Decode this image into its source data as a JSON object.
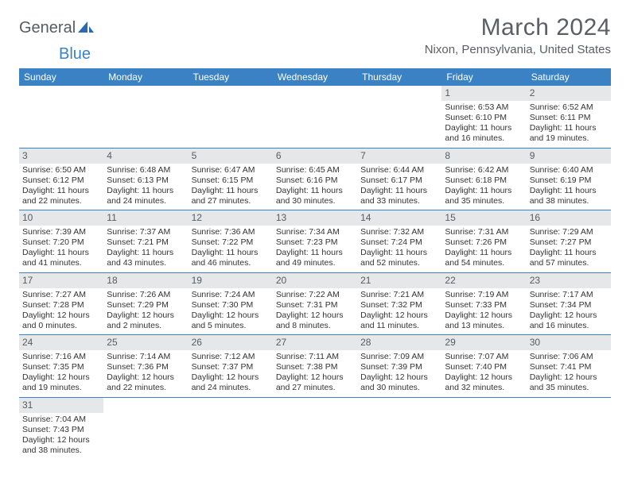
{
  "logo": {
    "part1": "General",
    "part2": "Blue"
  },
  "title": {
    "month": "March 2024",
    "location": "Nixon, Pennsylvania, United States"
  },
  "colors": {
    "header_bg": "#3b82c4",
    "daynum_bg": "#e5e7e9",
    "text": "#333333",
    "title_text": "#5a5f66"
  },
  "weekdays": [
    "Sunday",
    "Monday",
    "Tuesday",
    "Wednesday",
    "Thursday",
    "Friday",
    "Saturday"
  ],
  "days": {
    "1": {
      "sunrise": "6:53 AM",
      "sunset": "6:10 PM",
      "day_h": 11,
      "day_m": 16
    },
    "2": {
      "sunrise": "6:52 AM",
      "sunset": "6:11 PM",
      "day_h": 11,
      "day_m": 19
    },
    "3": {
      "sunrise": "6:50 AM",
      "sunset": "6:12 PM",
      "day_h": 11,
      "day_m": 22
    },
    "4": {
      "sunrise": "6:48 AM",
      "sunset": "6:13 PM",
      "day_h": 11,
      "day_m": 24
    },
    "5": {
      "sunrise": "6:47 AM",
      "sunset": "6:15 PM",
      "day_h": 11,
      "day_m": 27
    },
    "6": {
      "sunrise": "6:45 AM",
      "sunset": "6:16 PM",
      "day_h": 11,
      "day_m": 30
    },
    "7": {
      "sunrise": "6:44 AM",
      "sunset": "6:17 PM",
      "day_h": 11,
      "day_m": 33
    },
    "8": {
      "sunrise": "6:42 AM",
      "sunset": "6:18 PM",
      "day_h": 11,
      "day_m": 35
    },
    "9": {
      "sunrise": "6:40 AM",
      "sunset": "6:19 PM",
      "day_h": 11,
      "day_m": 38
    },
    "10": {
      "sunrise": "7:39 AM",
      "sunset": "7:20 PM",
      "day_h": 11,
      "day_m": 41
    },
    "11": {
      "sunrise": "7:37 AM",
      "sunset": "7:21 PM",
      "day_h": 11,
      "day_m": 43
    },
    "12": {
      "sunrise": "7:36 AM",
      "sunset": "7:22 PM",
      "day_h": 11,
      "day_m": 46
    },
    "13": {
      "sunrise": "7:34 AM",
      "sunset": "7:23 PM",
      "day_h": 11,
      "day_m": 49
    },
    "14": {
      "sunrise": "7:32 AM",
      "sunset": "7:24 PM",
      "day_h": 11,
      "day_m": 52
    },
    "15": {
      "sunrise": "7:31 AM",
      "sunset": "7:26 PM",
      "day_h": 11,
      "day_m": 54
    },
    "16": {
      "sunrise": "7:29 AM",
      "sunset": "7:27 PM",
      "day_h": 11,
      "day_m": 57
    },
    "17": {
      "sunrise": "7:27 AM",
      "sunset": "7:28 PM",
      "day_h": 12,
      "day_m": 0
    },
    "18": {
      "sunrise": "7:26 AM",
      "sunset": "7:29 PM",
      "day_h": 12,
      "day_m": 2
    },
    "19": {
      "sunrise": "7:24 AM",
      "sunset": "7:30 PM",
      "day_h": 12,
      "day_m": 5
    },
    "20": {
      "sunrise": "7:22 AM",
      "sunset": "7:31 PM",
      "day_h": 12,
      "day_m": 8
    },
    "21": {
      "sunrise": "7:21 AM",
      "sunset": "7:32 PM",
      "day_h": 12,
      "day_m": 11
    },
    "22": {
      "sunrise": "7:19 AM",
      "sunset": "7:33 PM",
      "day_h": 12,
      "day_m": 13
    },
    "23": {
      "sunrise": "7:17 AM",
      "sunset": "7:34 PM",
      "day_h": 12,
      "day_m": 16
    },
    "24": {
      "sunrise": "7:16 AM",
      "sunset": "7:35 PM",
      "day_h": 12,
      "day_m": 19
    },
    "25": {
      "sunrise": "7:14 AM",
      "sunset": "7:36 PM",
      "day_h": 12,
      "day_m": 22
    },
    "26": {
      "sunrise": "7:12 AM",
      "sunset": "7:37 PM",
      "day_h": 12,
      "day_m": 24
    },
    "27": {
      "sunrise": "7:11 AM",
      "sunset": "7:38 PM",
      "day_h": 12,
      "day_m": 27
    },
    "28": {
      "sunrise": "7:09 AM",
      "sunset": "7:39 PM",
      "day_h": 12,
      "day_m": 30
    },
    "29": {
      "sunrise": "7:07 AM",
      "sunset": "7:40 PM",
      "day_h": 12,
      "day_m": 32
    },
    "30": {
      "sunrise": "7:06 AM",
      "sunset": "7:41 PM",
      "day_h": 12,
      "day_m": 35
    },
    "31": {
      "sunrise": "7:04 AM",
      "sunset": "7:43 PM",
      "day_h": 12,
      "day_m": 38
    }
  },
  "grid": [
    [
      null,
      null,
      null,
      null,
      null,
      "1",
      "2"
    ],
    [
      "3",
      "4",
      "5",
      "6",
      "7",
      "8",
      "9"
    ],
    [
      "10",
      "11",
      "12",
      "13",
      "14",
      "15",
      "16"
    ],
    [
      "17",
      "18",
      "19",
      "20",
      "21",
      "22",
      "23"
    ],
    [
      "24",
      "25",
      "26",
      "27",
      "28",
      "29",
      "30"
    ],
    [
      "31",
      null,
      null,
      null,
      null,
      null,
      null
    ]
  ],
  "labels": {
    "sunrise": "Sunrise:",
    "sunset": "Sunset:",
    "daylight": "Daylight:",
    "hours": "hours",
    "and": "and",
    "minutes": "minutes."
  }
}
